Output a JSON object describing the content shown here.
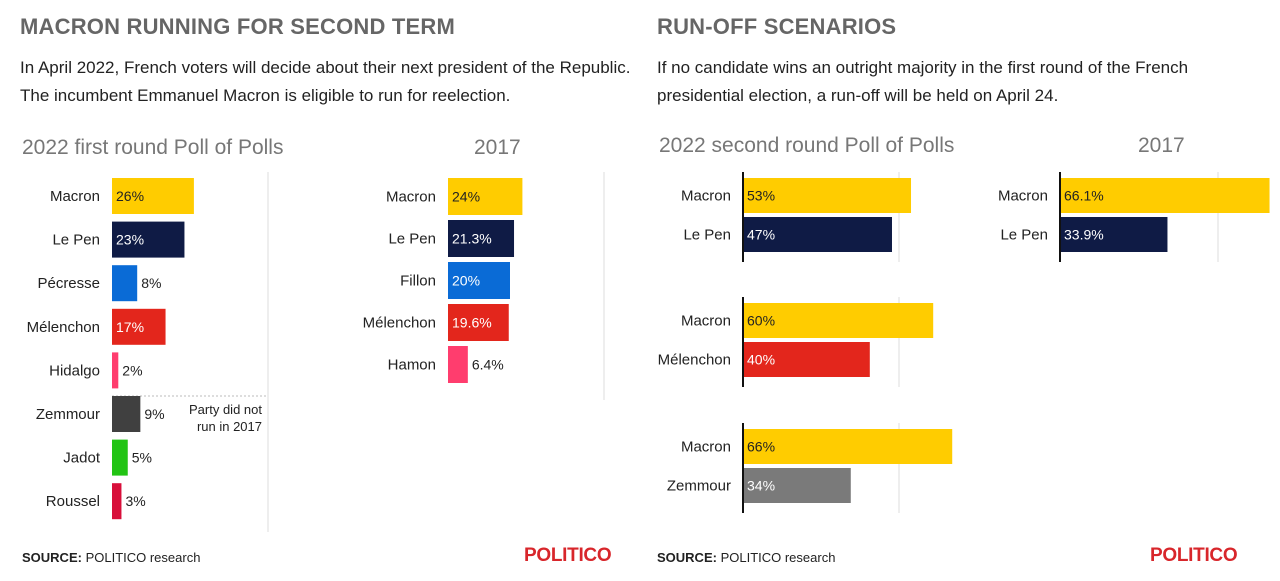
{
  "left_panel": {
    "title": "MACRON RUNNING FOR SECOND TERM",
    "description": "In April 2022, French voters will decide about their next president of the Republic. The incumbent Emmanuel Macron is eligible to run for reelection.",
    "source_label": "SOURCE:",
    "source_text": " POLITICO research",
    "logo": "POLITICO"
  },
  "right_panel": {
    "title": "RUN-OFF SCENARIOS",
    "description": "If no candidate wins an outright majority in the first round of the French presidential election, a run-off will be held on April 24.",
    "source_label": "SOURCE:",
    "source_text": " POLITICO research",
    "logo": "POLITICO"
  },
  "colors": {
    "Macron": "#ffcc00",
    "Le Pen": "#0f1b45",
    "Pécresse": "#0a6bd6",
    "Fillon": "#0a6bd6",
    "Mélenchon": "#e3261c",
    "Hidalgo": "#ff3d6e",
    "Hamon": "#ff3d6e",
    "Zemmour": "#404040",
    "Zemmour_runoff": "#7a7a7a",
    "Jadot": "#22c414",
    "Roussel": "#d80f3a"
  },
  "annotation": "Party did not run in 2017",
  "chart_data": [
    {
      "type": "bar",
      "title": "2022 first round Poll of Polls",
      "categories": [
        "Macron",
        "Le Pen",
        "Pécresse",
        "Mélenchon",
        "Hidalgo",
        "Zemmour",
        "Jadot",
        "Roussel"
      ],
      "values": [
        26,
        23,
        8,
        17,
        2,
        9,
        5,
        3
      ],
      "labels": [
        "26%",
        "23%",
        "8%",
        "17%",
        "2%",
        "9%",
        "5%",
        "3%"
      ]
    },
    {
      "type": "bar",
      "title": "2017",
      "categories": [
        "Macron",
        "Le Pen",
        "Fillon",
        "Mélenchon",
        "Hamon"
      ],
      "values": [
        24,
        21.3,
        20,
        19.6,
        6.4
      ],
      "labels": [
        "24%",
        "21.3%",
        "20%",
        "19.6%",
        "6.4%"
      ]
    },
    {
      "type": "bar",
      "title": "2022 second round Poll of Polls",
      "groups": [
        {
          "categories": [
            "Macron",
            "Le Pen"
          ],
          "values": [
            53,
            47
          ],
          "labels": [
            "53%",
            "47%"
          ]
        },
        {
          "categories": [
            "Macron",
            "Mélenchon"
          ],
          "values": [
            60,
            40
          ],
          "labels": [
            "60%",
            "40%"
          ]
        },
        {
          "categories": [
            "Macron",
            "Zemmour"
          ],
          "values": [
            66,
            34
          ],
          "labels": [
            "66%",
            "34%"
          ]
        }
      ]
    },
    {
      "type": "bar",
      "title": "2017",
      "categories": [
        "Macron",
        "Le Pen"
      ],
      "values": [
        66.1,
        33.9
      ],
      "labels": [
        "66.1%",
        "33.9%"
      ]
    }
  ]
}
